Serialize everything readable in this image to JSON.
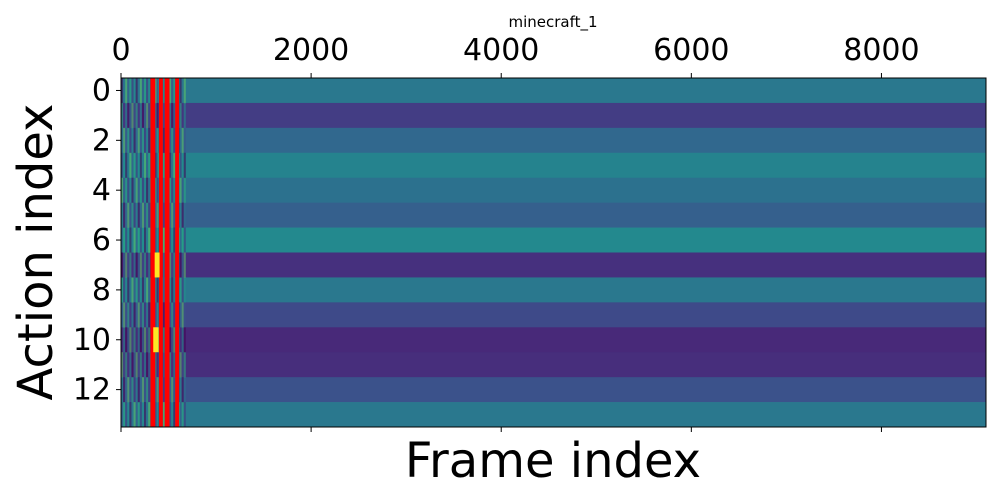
{
  "chart_data": {
    "type": "heatmap",
    "title": "minecraft_1",
    "xlabel": "Frame index",
    "ylabel": "Action index",
    "xlim": [
      0,
      9100
    ],
    "ylim": [
      13.5,
      -0.5
    ],
    "x_axis_position": "top",
    "x_ticks": [
      0,
      2000,
      4000,
      6000,
      8000
    ],
    "y_ticks": [
      0,
      2,
      4,
      6,
      8,
      10,
      12
    ],
    "grid": false,
    "rows": [
      {
        "action": 0,
        "color": "#2a788e"
      },
      {
        "action": 1,
        "color": "#433d84"
      },
      {
        "action": 2,
        "color": "#31688e"
      },
      {
        "action": 3,
        "color": "#25838e"
      },
      {
        "action": 4,
        "color": "#2c718e"
      },
      {
        "action": 5,
        "color": "#35608d"
      },
      {
        "action": 6,
        "color": "#23898e"
      },
      {
        "action": 7,
        "color": "#46307e"
      },
      {
        "action": 8,
        "color": "#2a788e"
      },
      {
        "action": 9,
        "color": "#3e4a89"
      },
      {
        "action": 10,
        "color": "#482979"
      },
      {
        "action": 11,
        "color": "#472e7c"
      },
      {
        "action": 12,
        "color": "#3b528b"
      },
      {
        "action": 13,
        "color": "#2a788e"
      }
    ],
    "active_region": {
      "x_start": 0,
      "x_end": 680
    },
    "highlight_stripes": [
      {
        "x_start": 310,
        "x_end": 360,
        "color": "#ff0000"
      },
      {
        "x_start": 400,
        "x_end": 440,
        "color": "#ff0000"
      },
      {
        "x_start": 460,
        "x_end": 510,
        "color": "#ff0000"
      },
      {
        "x_start": 570,
        "x_end": 610,
        "color": "#ff0000"
      }
    ],
    "yellow_marks": [
      {
        "x": 370,
        "action": 7
      },
      {
        "x": 390,
        "action": 7
      },
      {
        "x": 355,
        "action": 10
      },
      {
        "x": 380,
        "action": 10
      }
    ]
  }
}
